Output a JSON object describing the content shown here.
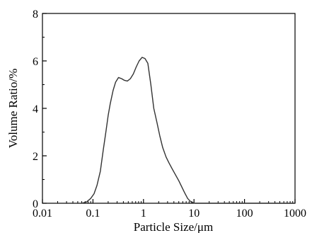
{
  "chart_data": {
    "type": "line",
    "xlabel": "Particle Size/μm",
    "ylabel": "Volume Ratio/%",
    "xscale": "log",
    "xlim": [
      0.01,
      1000
    ],
    "ylim": [
      0,
      8
    ],
    "grid": false,
    "legend": "none",
    "x_ticks": [
      0.01,
      0.1,
      1,
      10,
      100,
      1000
    ],
    "x_tick_labels": [
      "0.01",
      "0.1",
      "1",
      "10",
      "100",
      "1000"
    ],
    "y_ticks": [
      0,
      2,
      4,
      6,
      8
    ],
    "y_tick_labels": [
      "0",
      "2",
      "4",
      "6",
      "8"
    ],
    "series": [
      {
        "color": "#333333",
        "x": [
          0.06,
          0.075,
          0.09,
          0.105,
          0.12,
          0.14,
          0.16,
          0.18,
          0.2,
          0.22,
          0.25,
          0.28,
          0.32,
          0.37,
          0.42,
          0.48,
          0.55,
          0.63,
          0.72,
          0.82,
          0.94,
          1.07,
          1.22,
          1.4,
          1.6,
          1.85,
          2.1,
          2.4,
          2.8,
          3.2,
          3.7,
          4.3,
          5.0,
          5.7,
          6.5,
          7.5,
          8.5,
          9.5,
          10.5,
          12,
          20,
          50,
          100,
          300,
          1000
        ],
        "y": [
          0.0,
          0.06,
          0.2,
          0.4,
          0.75,
          1.35,
          2.25,
          3.0,
          3.7,
          4.2,
          4.75,
          5.1,
          5.3,
          5.25,
          5.18,
          5.15,
          5.25,
          5.45,
          5.75,
          6.0,
          6.15,
          6.1,
          5.9,
          5.0,
          4.0,
          3.4,
          2.85,
          2.35,
          1.95,
          1.7,
          1.45,
          1.2,
          0.95,
          0.7,
          0.45,
          0.2,
          0.08,
          0.03,
          0.0,
          0.0,
          0.0,
          0.0,
          0.0,
          0.0,
          0.0
        ]
      }
    ]
  }
}
